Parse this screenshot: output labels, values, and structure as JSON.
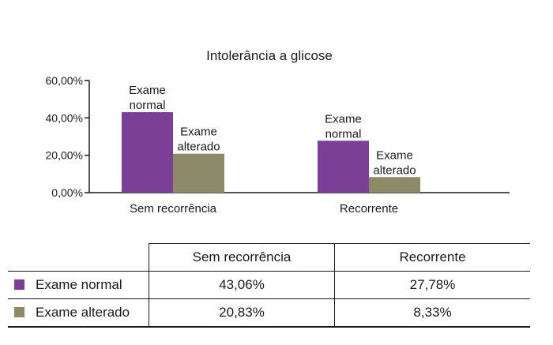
{
  "chart_data": {
    "type": "bar",
    "title": "Intolerância a glicose",
    "categories": [
      "Sem recorrência",
      "Recorrente"
    ],
    "series": [
      {
        "name": "Exame normal",
        "label_lines": [
          "Exame",
          "normal"
        ],
        "values": [
          43.06,
          27.78
        ],
        "color": "#7b3f98"
      },
      {
        "name": "Exame alterado",
        "label_lines": [
          "Exame",
          "alterado"
        ],
        "values": [
          20.83,
          8.33
        ],
        "color": "#8c8a67"
      }
    ],
    "yticks": [
      "0,00%",
      "20,00%",
      "40,00%",
      "60,00%"
    ],
    "ytick_values": [
      0,
      20,
      40,
      60
    ],
    "ylim": [
      0,
      60
    ],
    "grid": false,
    "legend": "table"
  },
  "table": {
    "headers": [
      "",
      "Sem recorrência",
      "Recorrente"
    ],
    "rows": [
      {
        "label": "Exame normal",
        "values": [
          "43,06%",
          "27,78%"
        ]
      },
      {
        "label": "Exame alterado",
        "values": [
          "20,83%",
          "8,33%"
        ]
      }
    ]
  }
}
